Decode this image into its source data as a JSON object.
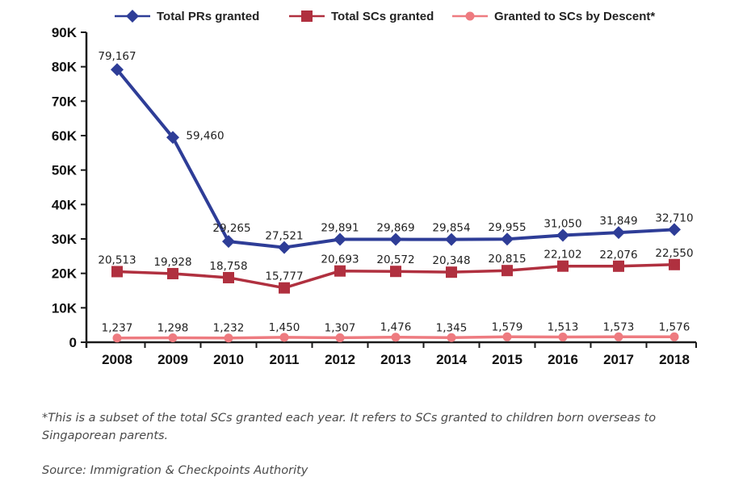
{
  "chart_data": {
    "type": "line",
    "title": "",
    "xlabel": "",
    "ylabel": "",
    "x": [
      "2008",
      "2009",
      "2010",
      "2011",
      "2012",
      "2013",
      "2014",
      "2015",
      "2016",
      "2017",
      "2018"
    ],
    "ylim": [
      0,
      90000
    ],
    "yticks": [
      0,
      10000,
      20000,
      30000,
      40000,
      50000,
      60000,
      70000,
      80000,
      90000
    ],
    "ytick_labels": [
      "0",
      "10K",
      "20K",
      "30K",
      "40K",
      "50K",
      "60K",
      "70K",
      "80K",
      "90K"
    ],
    "grid": false,
    "legend_position": "top",
    "series": [
      {
        "name": "Total PRs granted",
        "color": "#2e3d97",
        "marker": "diamond",
        "values": [
          79167,
          59460,
          29265,
          27521,
          29891,
          29869,
          29854,
          29955,
          31050,
          31849,
          32710
        ],
        "labels": [
          "79,167",
          "59,460",
          "29,265",
          "27,521",
          "29,891",
          "29,869",
          "29,854",
          "29,955",
          "31,050",
          "31,849",
          "32,710"
        ]
      },
      {
        "name": "Total SCs granted",
        "color": "#b0303f",
        "marker": "square",
        "values": [
          20513,
          19928,
          18758,
          15777,
          20693,
          20572,
          20348,
          20815,
          22102,
          22076,
          22550
        ],
        "labels": [
          "20,513",
          "19,928",
          "18,758",
          "15,777",
          "20,693",
          "20,572",
          "20,348",
          "20,815",
          "22,102",
          "22,076",
          "22,550"
        ]
      },
      {
        "name": "Granted to SCs by Descent*",
        "color": "#ee7b80",
        "marker": "circle",
        "values": [
          1237,
          1298,
          1232,
          1450,
          1307,
          1476,
          1345,
          1579,
          1513,
          1573,
          1576
        ],
        "labels": [
          "1,237",
          "1,298",
          "1,232",
          "1,450",
          "1,307",
          "1,476",
          "1,345",
          "1,579",
          "1,513",
          "1,573",
          "1,576"
        ]
      }
    ]
  },
  "footnote": "*This is a subset of the total SCs granted each year. It refers to SCs granted to children born overseas to Singaporean parents.",
  "source": "Source: Immigration & Checkpoints Authority"
}
